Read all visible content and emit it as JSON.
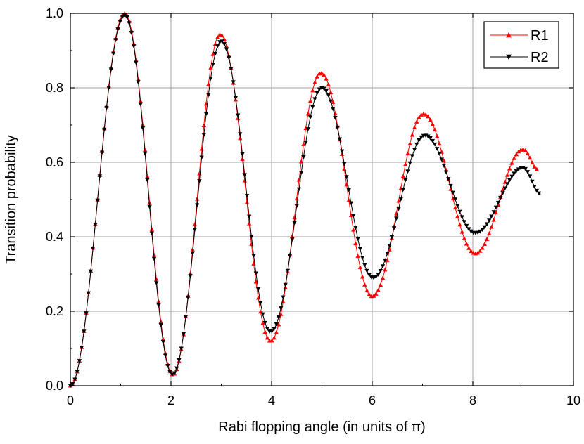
{
  "chart_data": {
    "type": "line",
    "title": "",
    "xlabel_prefix": "Rabi flopping angle (in units of ",
    "xlabel_symbol": "π",
    "xlabel_suffix": ")",
    "ylabel": "Transition probability",
    "xlim": [
      0,
      10
    ],
    "ylim": [
      0,
      1.0
    ],
    "x_ticks": [
      0,
      2,
      4,
      6,
      8,
      10
    ],
    "x_tick_labels": [
      "0",
      "2",
      "4",
      "6",
      "8",
      "10"
    ],
    "y_ticks": [
      0.0,
      0.2,
      0.4,
      0.6,
      0.8,
      1.0
    ],
    "y_tick_labels": [
      "0.0",
      "0.2",
      "0.4",
      "0.6",
      "0.8",
      "1.0"
    ],
    "grid": true,
    "legend_position": "top-right",
    "x_range": [
      0,
      9.3
    ],
    "series": [
      {
        "name": "R1",
        "color": "#ff0000",
        "marker": "triangle-up",
        "x_end": 9.3,
        "description_points": [
          [
            0.0,
            0.0
          ],
          [
            1.08,
            1.0
          ],
          [
            2.04,
            0.03
          ],
          [
            2.98,
            0.943
          ],
          [
            3.98,
            0.12
          ],
          [
            4.98,
            0.84
          ],
          [
            6.0,
            0.24
          ],
          [
            7.02,
            0.73
          ],
          [
            8.05,
            0.355
          ],
          [
            9.0,
            0.635
          ],
          [
            9.3,
            0.58
          ]
        ]
      },
      {
        "name": "R2",
        "color": "#000000",
        "marker": "triangle-down",
        "x_end": 9.35,
        "description_points": [
          [
            0.0,
            0.0
          ],
          [
            1.08,
            0.995
          ],
          [
            2.03,
            0.03
          ],
          [
            3.0,
            0.925
          ],
          [
            3.98,
            0.145
          ],
          [
            5.0,
            0.8
          ],
          [
            6.02,
            0.29
          ],
          [
            7.05,
            0.672
          ],
          [
            8.05,
            0.41
          ],
          [
            9.0,
            0.585
          ],
          [
            9.35,
            0.515
          ]
        ]
      }
    ]
  }
}
